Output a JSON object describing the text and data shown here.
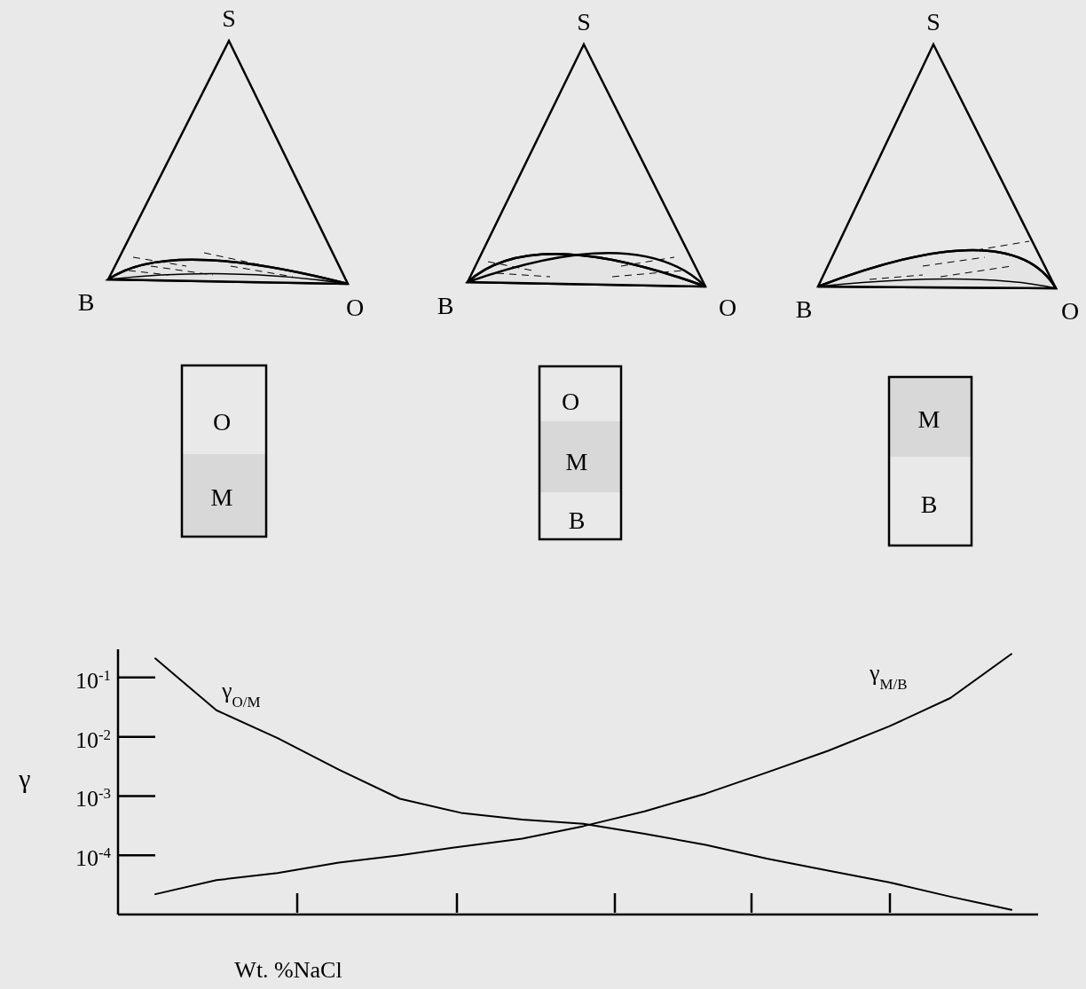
{
  "chart_data": {
    "type": "line",
    "xlabel": "Wt. %NaCl",
    "ylabel": "γ",
    "log": "y",
    "tick_labels": "y",
    "categories": [
      null,
      null,
      null,
      null,
      null,
      null,
      null,
      null,
      null,
      null,
      null,
      null,
      null,
      null,
      null
    ],
    "ylim": [
      1e-05,
      0.3
    ],
    "yticks": [
      {
        "value": 0.1,
        "label": "10$^{-1}$"
      },
      {
        "value": 0.01,
        "label": "10$^{-2}$"
      },
      {
        "value": 0.001,
        "label": "10$^{-3}$"
      },
      {
        "value": 0.0001,
        "label": "10$^{-4}$"
      }
    ],
    "series": [
      {
        "name": "γ$_{O/M}$",
        "color": "#000000",
        "values": [
          0.21,
          0.028,
          0.0095,
          0.0028,
          0.0009,
          0.00052,
          0.0004,
          0.00034,
          0.00023,
          0.00015,
          8.8e-05,
          5.5e-05,
          3.5e-05,
          2e-05,
          1.2e-05
        ]
      },
      {
        "name": "γ$_{M/B}$",
        "color": "#000000",
        "values": [
          2.2e-05,
          3.8e-05,
          5e-05,
          7.5e-05,
          0.0001,
          0.00014,
          0.00019,
          0.00031,
          0.00055,
          0.0011,
          0.0025,
          0.0058,
          0.015,
          0.045,
          0.25
        ]
      }
    ],
    "annotations": [
      "S",
      "B",
      "O",
      "S",
      "B",
      "O",
      "S",
      "B",
      "O",
      "O",
      "M",
      "O",
      "M",
      "B",
      "M",
      "B"
    ]
  }
}
